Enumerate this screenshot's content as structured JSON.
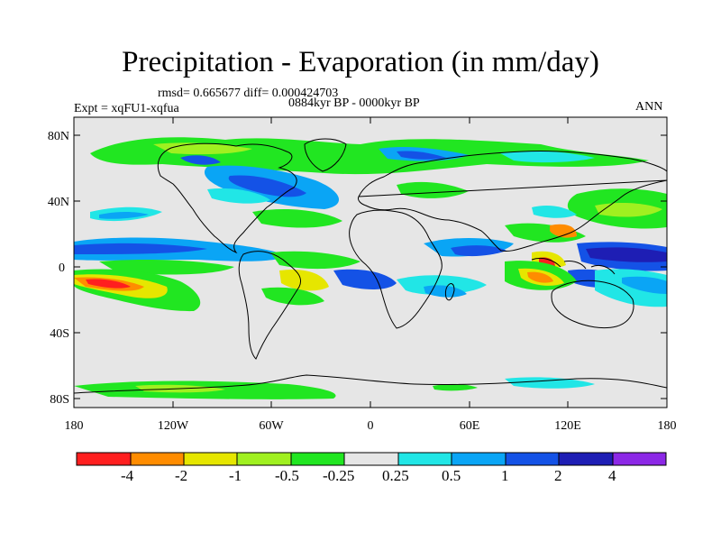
{
  "title": "Precipitation - Evaporation (in mm/day)",
  "stats": {
    "rmsd": "rmsd= 0.665677",
    "diff": "diff= 0.000424703"
  },
  "period": "0884kyr BP - 0000kyr BP",
  "experiment": "Expt = xqFU1-xqfua",
  "season": "ANN",
  "lat_labels": [
    "80N",
    "40N",
    "0",
    "40S",
    "80S"
  ],
  "lon_labels": [
    "180",
    "120W",
    "60W",
    "0",
    "60E",
    "120E",
    "180"
  ],
  "colorbar": {
    "labels": [
      "-4",
      "-2",
      "-1",
      "-0.5",
      "-0.25",
      "0.25",
      "0.5",
      "1",
      "2",
      "4"
    ],
    "colors": [
      "#ff1f1f",
      "#ff8c00",
      "#e6e600",
      "#a0f020",
      "#21e621",
      "#e6e6e6",
      "#21e6e6",
      "#0aa5f5",
      "#1452e6",
      "#1e1eb4",
      "#8c28e6"
    ]
  }
}
